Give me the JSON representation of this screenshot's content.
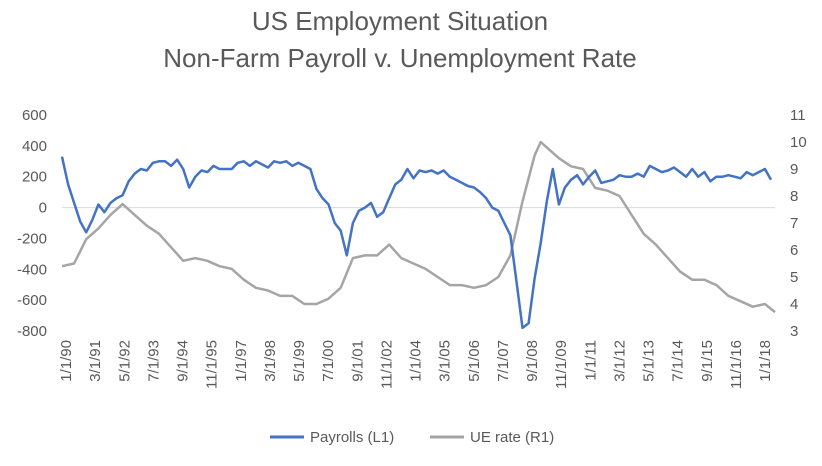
{
  "chart_data": {
    "type": "line",
    "title": "US Employment  Situation",
    "subtitle": "Non-Farm  Payroll v. Unemployment  Rate",
    "left_axis": {
      "ylim": [
        -800,
        600
      ],
      "ticks": [
        "600",
        "400",
        "200",
        "0",
        "-200",
        "-400",
        "-600",
        "-800"
      ]
    },
    "right_axis": {
      "ylim": [
        3,
        11
      ],
      "ticks": [
        "11",
        "10",
        "9",
        "8",
        "7",
        "6",
        "5",
        "4",
        "3"
      ]
    },
    "x_axis": {
      "range": [
        "1990-01",
        "2019-06"
      ],
      "tick_labels": [
        "1/1/90",
        "3/1/91",
        "5/1/92",
        "7/1/93",
        "9/1/94",
        "11/1/95",
        "1/1/97",
        "3/1/98",
        "5/1/99",
        "7/1/00",
        "9/1/01",
        "11/1/02",
        "1/1/04",
        "3/1/05",
        "5/1/06",
        "7/1/07",
        "9/1/08",
        "11/1/09",
        "1/1/11",
        "3/1/12",
        "5/1/13",
        "7/1/14",
        "9/1/15",
        "11/1/16",
        "1/1/18"
      ]
    },
    "grid": false,
    "legend_position": "bottom",
    "series": [
      {
        "name": "Payrolls (L1)",
        "axis": "left",
        "color": "#4472C4",
        "x": [
          "1990-01",
          "1990-04",
          "1990-07",
          "1990-10",
          "1991-01",
          "1991-04",
          "1991-07",
          "1991-10",
          "1992-01",
          "1992-04",
          "1992-07",
          "1992-10",
          "1993-01",
          "1993-04",
          "1993-07",
          "1993-10",
          "1994-01",
          "1994-04",
          "1994-07",
          "1994-10",
          "1995-01",
          "1995-04",
          "1995-07",
          "1995-10",
          "1996-01",
          "1996-04",
          "1996-07",
          "1996-10",
          "1997-01",
          "1997-04",
          "1997-07",
          "1997-10",
          "1998-01",
          "1998-04",
          "1998-07",
          "1998-10",
          "1999-01",
          "1999-04",
          "1999-07",
          "1999-10",
          "2000-01",
          "2000-04",
          "2000-07",
          "2000-10",
          "2001-01",
          "2001-04",
          "2001-07",
          "2001-10",
          "2002-01",
          "2002-04",
          "2002-07",
          "2002-10",
          "2003-01",
          "2003-04",
          "2003-07",
          "2003-10",
          "2004-01",
          "2004-04",
          "2004-07",
          "2004-10",
          "2005-01",
          "2005-04",
          "2005-07",
          "2005-10",
          "2006-01",
          "2006-04",
          "2006-07",
          "2006-10",
          "2007-01",
          "2007-04",
          "2007-07",
          "2007-10",
          "2008-01",
          "2008-04",
          "2008-07",
          "2008-10",
          "2009-01",
          "2009-04",
          "2009-07",
          "2009-10",
          "2010-01",
          "2010-04",
          "2010-07",
          "2010-10",
          "2011-01",
          "2011-04",
          "2011-07",
          "2011-10",
          "2012-01",
          "2012-04",
          "2012-07",
          "2012-10",
          "2013-01",
          "2013-04",
          "2013-07",
          "2013-10",
          "2014-01",
          "2014-04",
          "2014-07",
          "2014-10",
          "2015-01",
          "2015-04",
          "2015-07",
          "2015-10",
          "2016-01",
          "2016-04",
          "2016-07",
          "2016-10",
          "2017-01",
          "2017-04",
          "2017-07",
          "2017-10",
          "2018-01",
          "2018-04",
          "2018-07",
          "2018-10",
          "2019-01",
          "2019-04"
        ],
        "values": [
          330,
          150,
          30,
          -90,
          -160,
          -80,
          20,
          -30,
          30,
          60,
          80,
          170,
          220,
          250,
          240,
          290,
          300,
          300,
          270,
          310,
          250,
          130,
          200,
          240,
          230,
          270,
          250,
          250,
          250,
          290,
          300,
          270,
          300,
          280,
          260,
          300,
          290,
          300,
          270,
          290,
          270,
          250,
          120,
          60,
          20,
          -100,
          -150,
          -310,
          -100,
          -20,
          0,
          30,
          -60,
          -30,
          60,
          150,
          180,
          250,
          190,
          240,
          230,
          240,
          220,
          240,
          200,
          180,
          160,
          140,
          130,
          100,
          60,
          0,
          -20,
          -100,
          -180,
          -480,
          -780,
          -750,
          -460,
          -230,
          40,
          250,
          20,
          130,
          180,
          210,
          150,
          200,
          240,
          160,
          170,
          180,
          210,
          200,
          200,
          220,
          200,
          270,
          250,
          230,
          240,
          260,
          230,
          200,
          250,
          200,
          230,
          170,
          200,
          200,
          210,
          200,
          190,
          230,
          210,
          230,
          250,
          180
        ]
      },
      {
        "name": "UE rate (R1)",
        "axis": "right",
        "color": "#A5A5A5",
        "x": [
          "1990-01",
          "1990-07",
          "1991-01",
          "1991-07",
          "1992-01",
          "1992-07",
          "1993-01",
          "1993-07",
          "1994-01",
          "1994-07",
          "1995-01",
          "1995-07",
          "1996-01",
          "1996-07",
          "1997-01",
          "1997-07",
          "1998-01",
          "1998-07",
          "1999-01",
          "1999-07",
          "2000-01",
          "2000-07",
          "2001-01",
          "2001-07",
          "2002-01",
          "2002-07",
          "2003-01",
          "2003-07",
          "2004-01",
          "2004-07",
          "2005-01",
          "2005-07",
          "2006-01",
          "2006-07",
          "2007-01",
          "2007-07",
          "2008-01",
          "2008-07",
          "2009-01",
          "2009-07",
          "2009-10",
          "2010-01",
          "2010-07",
          "2011-01",
          "2011-07",
          "2012-01",
          "2012-07",
          "2013-01",
          "2013-07",
          "2014-01",
          "2014-07",
          "2015-01",
          "2015-07",
          "2016-01",
          "2016-07",
          "2017-01",
          "2017-07",
          "2018-01",
          "2018-07",
          "2019-01",
          "2019-06"
        ],
        "values": [
          5.4,
          5.5,
          6.4,
          6.8,
          7.3,
          7.7,
          7.3,
          6.9,
          6.6,
          6.1,
          5.6,
          5.7,
          5.6,
          5.4,
          5.3,
          4.9,
          4.6,
          4.5,
          4.3,
          4.3,
          4.0,
          4.0,
          4.2,
          4.6,
          5.7,
          5.8,
          5.8,
          6.2,
          5.7,
          5.5,
          5.3,
          5.0,
          4.7,
          4.7,
          4.6,
          4.7,
          5.0,
          5.8,
          7.8,
          9.5,
          10.0,
          9.8,
          9.4,
          9.1,
          9.0,
          8.3,
          8.2,
          8.0,
          7.3,
          6.6,
          6.2,
          5.7,
          5.2,
          4.9,
          4.9,
          4.7,
          4.3,
          4.1,
          3.9,
          4.0,
          3.7
        ]
      }
    ]
  }
}
